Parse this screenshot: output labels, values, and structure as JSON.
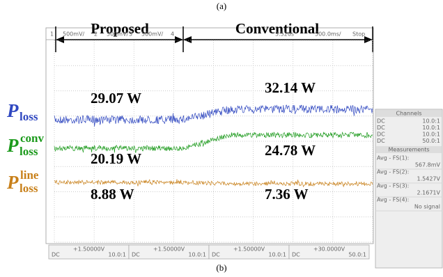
{
  "caption_top": "(a)",
  "caption_bottom": "(b)",
  "header": {
    "left": "Proposed",
    "right": "Conventional"
  },
  "scope_top": {
    "channels": [
      {
        "number": "1",
        "scale": "500mV/"
      },
      {
        "number": "2",
        "scale": "500mV/"
      },
      {
        "number": "3",
        "scale": "500mV/"
      },
      {
        "number": "4"
      }
    ],
    "time": "3.520s",
    "timebase": "500.0ms/",
    "state": "Stop"
  },
  "trace_labels": [
    {
      "symbol": "P",
      "sub": "loss"
    },
    {
      "symbol": "P",
      "sub": "loss",
      "sup": "conv"
    },
    {
      "symbol": "P",
      "sub": "loss",
      "sup": "line"
    }
  ],
  "readings": [
    {
      "left": "29.07 W",
      "right": "32.14 W"
    },
    {
      "left": "20.19 W",
      "right": "24.78 W"
    },
    {
      "left": "8.88 W",
      "right": "7.36 W"
    }
  ],
  "side_panel": {
    "channels_title": "Channels",
    "channels": [
      {
        "coupling": "DC",
        "ratio": "10.0:1"
      },
      {
        "coupling": "DC",
        "ratio": "10.0:1"
      },
      {
        "coupling": "DC",
        "ratio": "10.0:1"
      },
      {
        "coupling": "DC",
        "ratio": "50.0:1"
      }
    ],
    "measurements_title": "Measurements",
    "measurements": [
      {
        "label": "Avg - FS(1):",
        "value": "567.8mV"
      },
      {
        "label": "Avg - FS(2):",
        "value": "1.5427V"
      },
      {
        "label": "Avg - FS(3):",
        "value": "2.1671V"
      },
      {
        "label": "Avg - FS(4):",
        "value": "No signal"
      }
    ]
  },
  "bottom_bar": [
    {
      "offset": "+1.50000V",
      "coupling": "DC",
      "ratio": "10.0:1"
    },
    {
      "offset": "+1.50000V",
      "coupling": "DC",
      "ratio": "10.0:1"
    },
    {
      "offset": "+1.50000V",
      "coupling": "DC",
      "ratio": "10.0:1"
    },
    {
      "offset": "+30.0000V",
      "coupling": "DC",
      "ratio": "50.0:1"
    }
  ]
}
